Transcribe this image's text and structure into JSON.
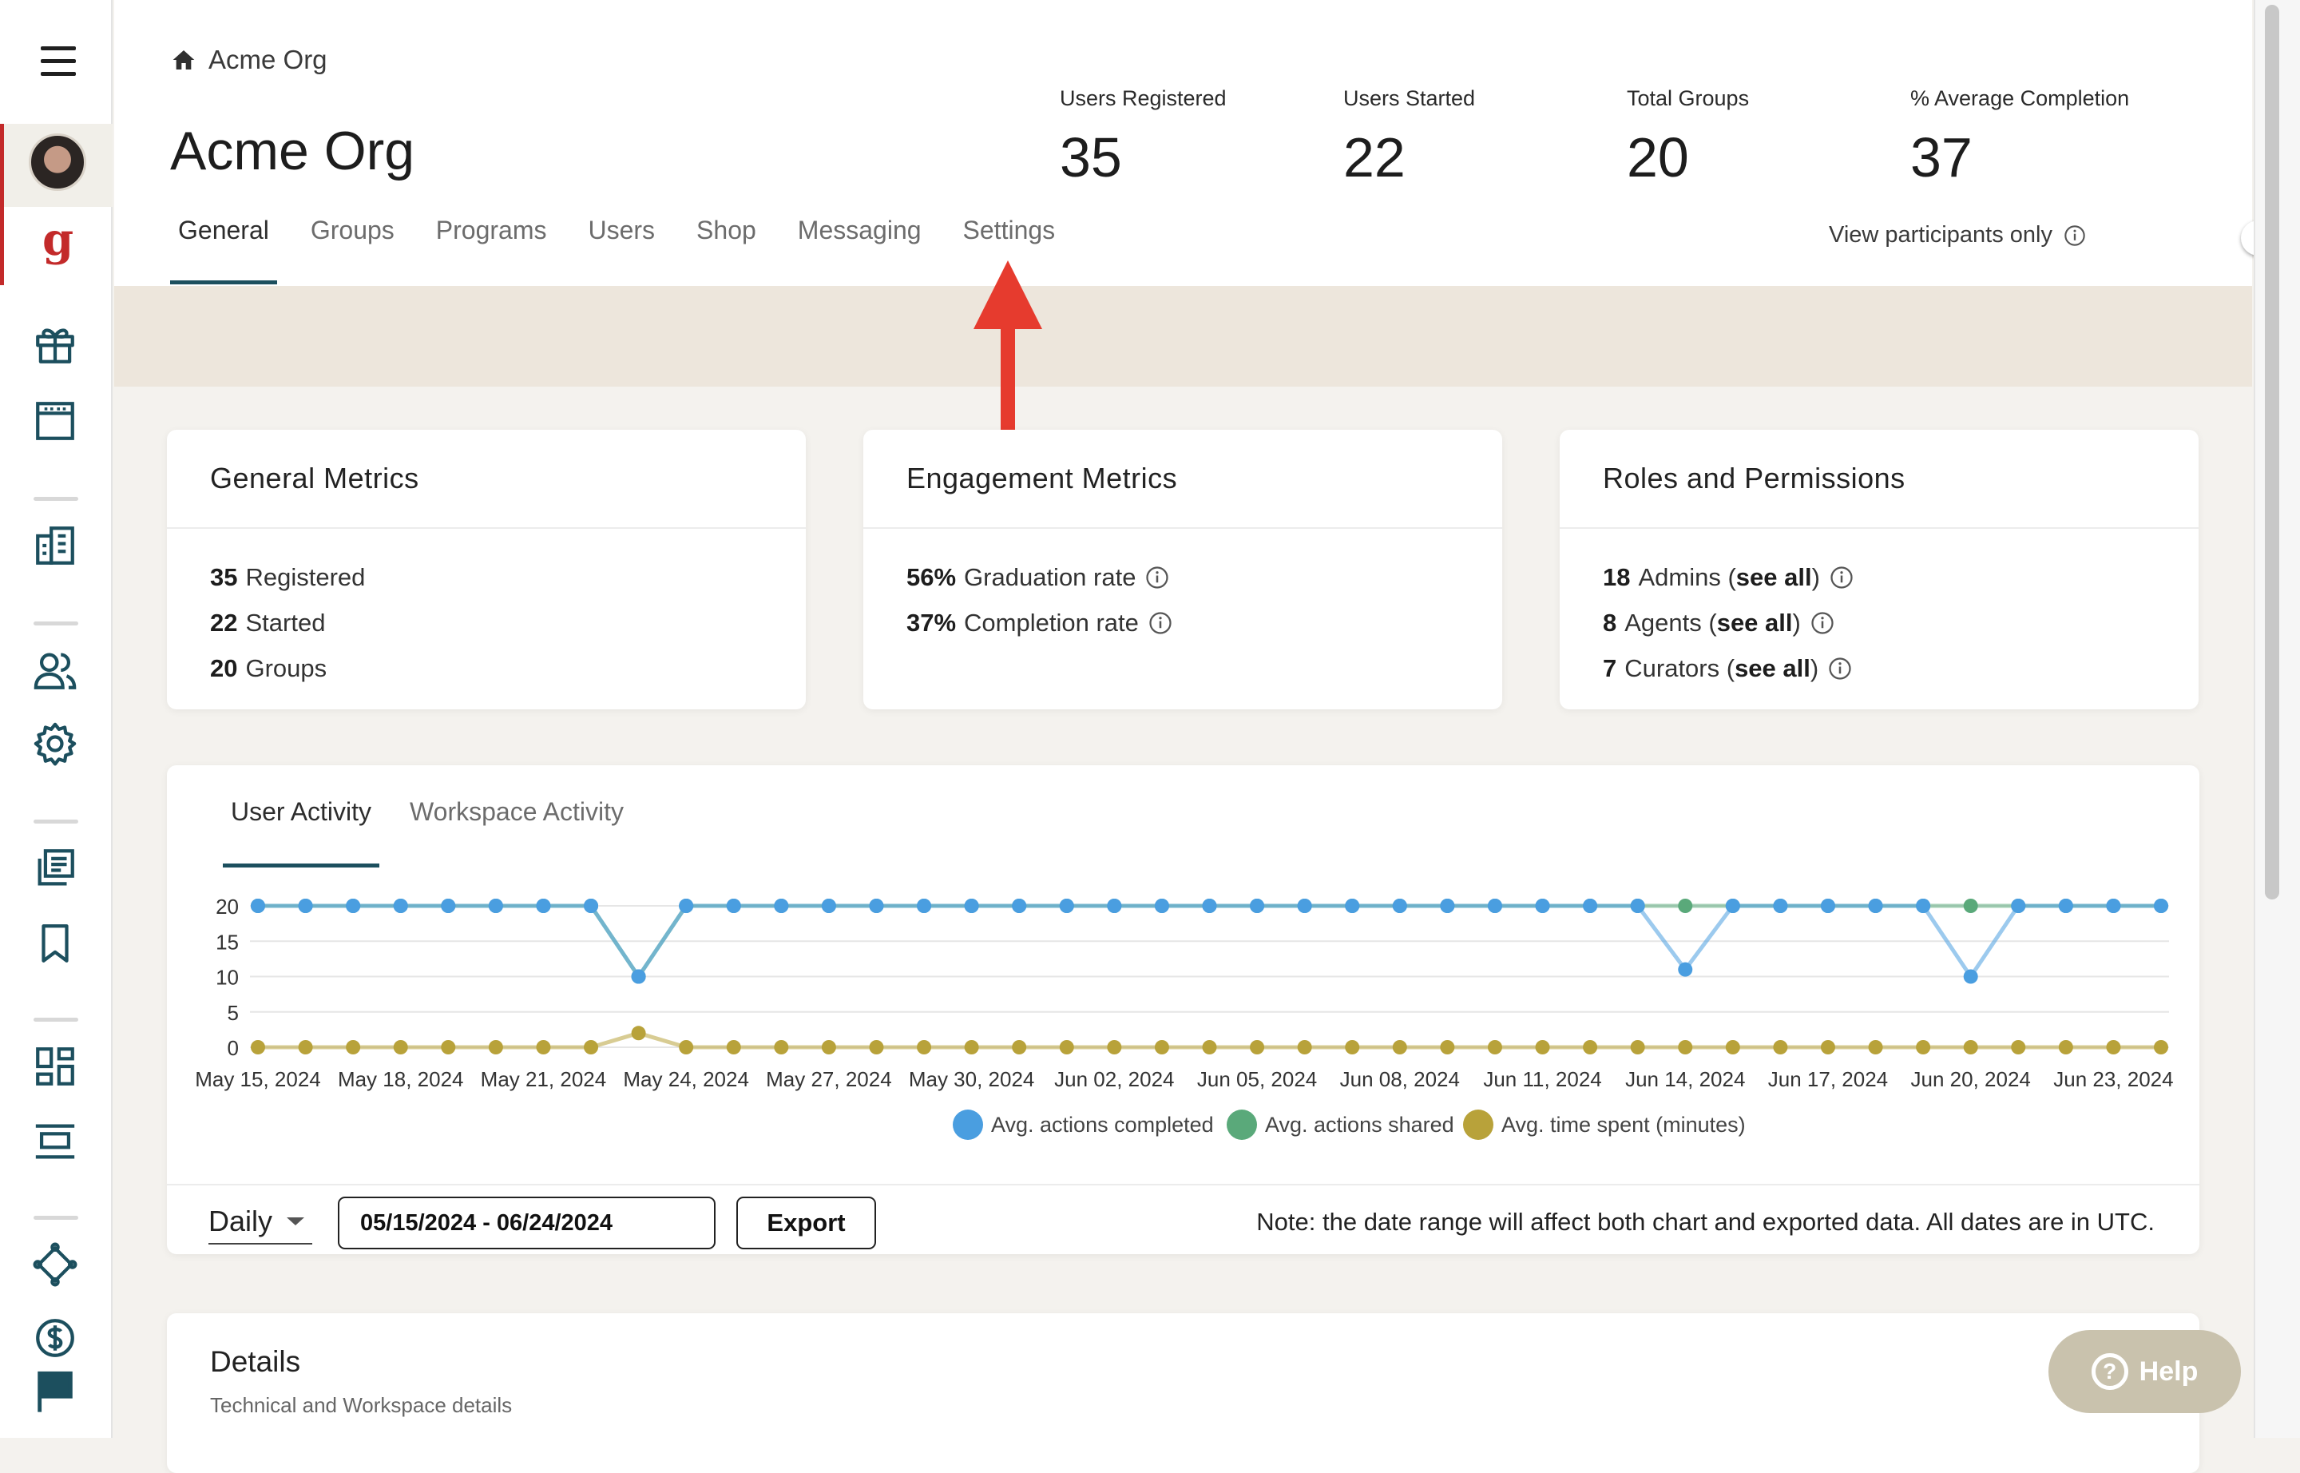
{
  "org": {
    "breadcrumb": "Acme Org",
    "title": "Acme Org"
  },
  "stats": [
    {
      "label": "Users Registered",
      "value": "35"
    },
    {
      "label": "Users Started",
      "value": "22"
    },
    {
      "label": "Total Groups",
      "value": "20"
    },
    {
      "label": "% Average Completion",
      "value": "37"
    }
  ],
  "tabs": [
    "General",
    "Groups",
    "Programs",
    "Users",
    "Shop",
    "Messaging",
    "Settings"
  ],
  "active_tab": "General",
  "view_participants": {
    "label": "View participants only",
    "enabled": false
  },
  "general_metrics": {
    "title": "General Metrics",
    "rows": [
      {
        "num": "35",
        "text": "Registered"
      },
      {
        "num": "22",
        "text": "Started"
      },
      {
        "num": "20",
        "text": "Groups"
      }
    ]
  },
  "engagement_metrics": {
    "title": "Engagement Metrics",
    "rows": [
      {
        "num": "56%",
        "text": "Graduation rate"
      },
      {
        "num": "37%",
        "text": "Completion rate"
      }
    ]
  },
  "roles": {
    "title": "Roles and Permissions",
    "rows": [
      {
        "num": "18",
        "text": "Admins",
        "link": "see all"
      },
      {
        "num": "8",
        "text": "Agents",
        "link": "see all"
      },
      {
        "num": "7",
        "text": "Curators",
        "link": "see all"
      }
    ]
  },
  "activity_tabs": [
    "User Activity",
    "Workspace Activity"
  ],
  "chart_data": {
    "type": "line",
    "x": [
      "May 15, 2024",
      "May 16, 2024",
      "May 17, 2024",
      "May 18, 2024",
      "May 19, 2024",
      "May 20, 2024",
      "May 21, 2024",
      "May 22, 2024",
      "May 23, 2024",
      "May 24, 2024",
      "May 25, 2024",
      "May 26, 2024",
      "May 27, 2024",
      "May 28, 2024",
      "May 29, 2024",
      "May 30, 2024",
      "May 31, 2024",
      "Jun 01, 2024",
      "Jun 02, 2024",
      "Jun 03, 2024",
      "Jun 04, 2024",
      "Jun 05, 2024",
      "Jun 06, 2024",
      "Jun 07, 2024",
      "Jun 08, 2024",
      "Jun 09, 2024",
      "Jun 10, 2024",
      "Jun 11, 2024",
      "Jun 12, 2024",
      "Jun 13, 2024",
      "Jun 14, 2024",
      "Jun 15, 2024",
      "Jun 16, 2024",
      "Jun 17, 2024",
      "Jun 18, 2024",
      "Jun 19, 2024",
      "Jun 20, 2024",
      "Jun 21, 2024",
      "Jun 22, 2024",
      "Jun 23, 2024",
      "Jun 24, 2024"
    ],
    "xticks": [
      "May 15, 2024",
      "May 18, 2024",
      "May 21, 2024",
      "May 24, 2024",
      "May 27, 2024",
      "May 30, 2024",
      "Jun 02, 2024",
      "Jun 05, 2024",
      "Jun 08, 2024",
      "Jun 11, 2024",
      "Jun 14, 2024",
      "Jun 17, 2024",
      "Jun 20, 2024",
      "Jun 23, 2024"
    ],
    "yticks": [
      20,
      15,
      10,
      5,
      0
    ],
    "ylim": [
      0,
      20
    ],
    "series": [
      {
        "name": "Avg. actions shared",
        "color": "#5aa97a",
        "values": [
          20,
          20,
          20,
          20,
          20,
          20,
          20,
          20,
          10,
          20,
          20,
          20,
          20,
          20,
          20,
          20,
          20,
          20,
          20,
          20,
          20,
          20,
          20,
          20,
          20,
          20,
          20,
          20,
          20,
          20,
          20,
          20,
          20,
          20,
          20,
          20,
          20,
          20,
          20,
          20,
          20
        ]
      },
      {
        "name": "Avg. actions completed",
        "color": "#4a9ee0",
        "values": [
          20,
          20,
          20,
          20,
          20,
          20,
          20,
          20,
          10,
          20,
          20,
          20,
          20,
          20,
          20,
          20,
          20,
          20,
          20,
          20,
          20,
          20,
          20,
          20,
          20,
          20,
          20,
          20,
          20,
          20,
          11,
          20,
          20,
          20,
          20,
          20,
          10,
          20,
          20,
          20,
          20
        ]
      },
      {
        "name": "Avg. time spent (minutes)",
        "color": "#b8a23a",
        "values": [
          0,
          0,
          0,
          0,
          0,
          0,
          0,
          0,
          2,
          0,
          0,
          0,
          0,
          0,
          0,
          0,
          0,
          0,
          0,
          0,
          0,
          0,
          0,
          0,
          0,
          0,
          0,
          0,
          0,
          0,
          0,
          0,
          0,
          0,
          0,
          0,
          0,
          0,
          0,
          0,
          0
        ]
      }
    ],
    "legend": [
      "Avg. actions completed",
      "Avg. actions shared",
      "Avg. time spent (minutes)"
    ],
    "legend_colors": [
      "#4a9ee0",
      "#5aa97a",
      "#b8a23a"
    ]
  },
  "controls": {
    "granularity": "Daily",
    "date_range": "05/15/2024 - 06/24/2024",
    "export_label": "Export",
    "note": "Note: the date range will affect both chart and exported data. All dates are in UTC."
  },
  "details": {
    "title": "Details",
    "subtitle": "Technical and Workspace details"
  },
  "help_label": "Help",
  "colors": {
    "accent": "#1c4f5e",
    "brand": "#c32a2a",
    "band": "#ede6dc",
    "annotation_arrow": "#e63b2e"
  }
}
